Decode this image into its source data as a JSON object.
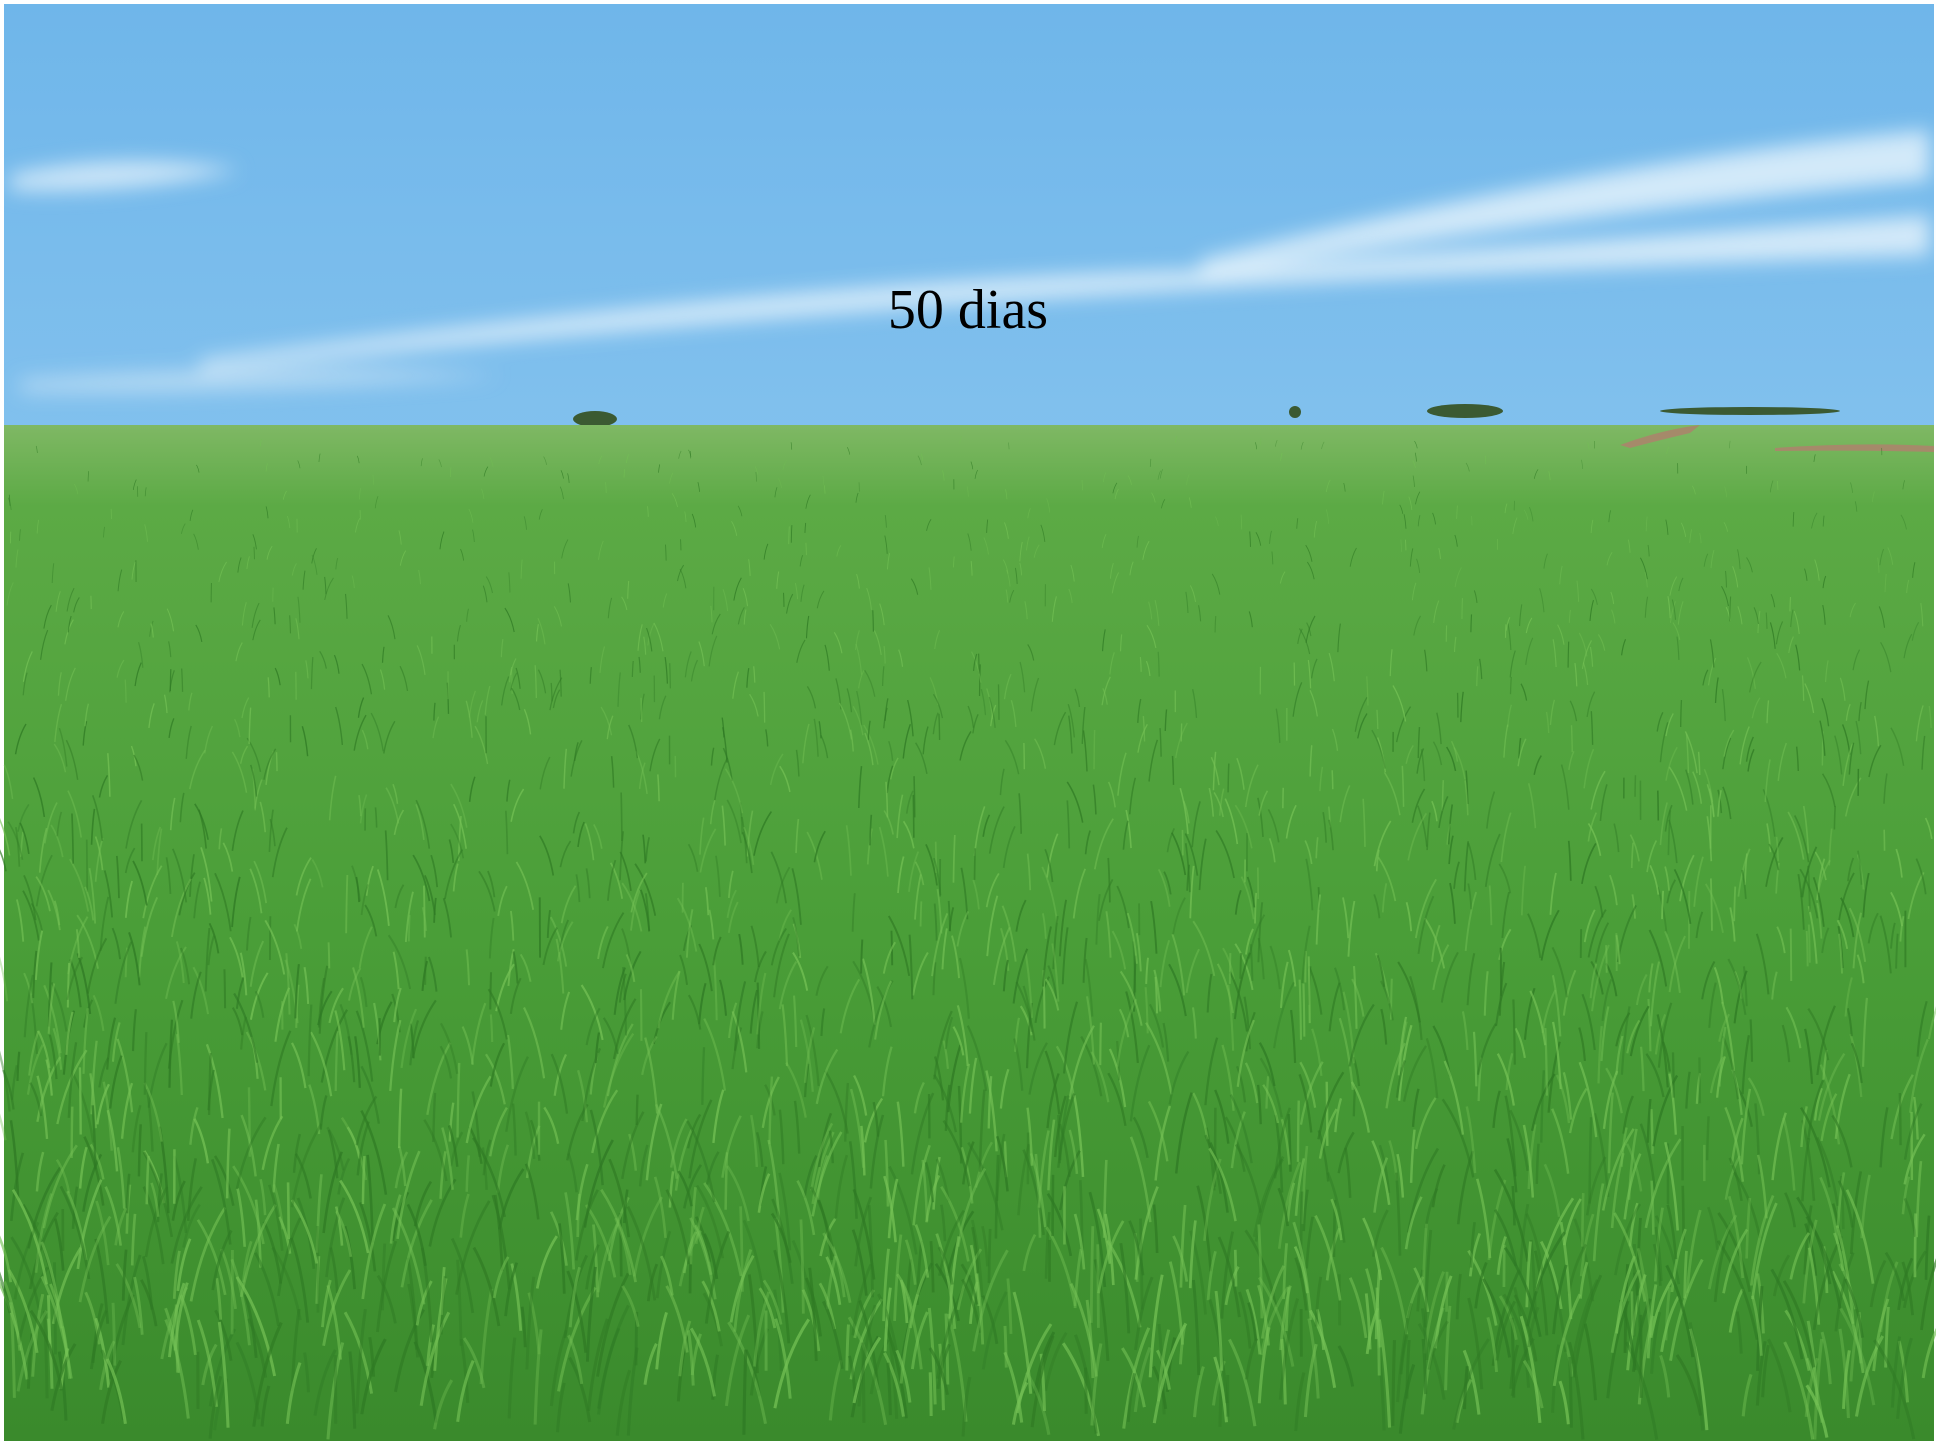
{
  "caption": "50 dias"
}
